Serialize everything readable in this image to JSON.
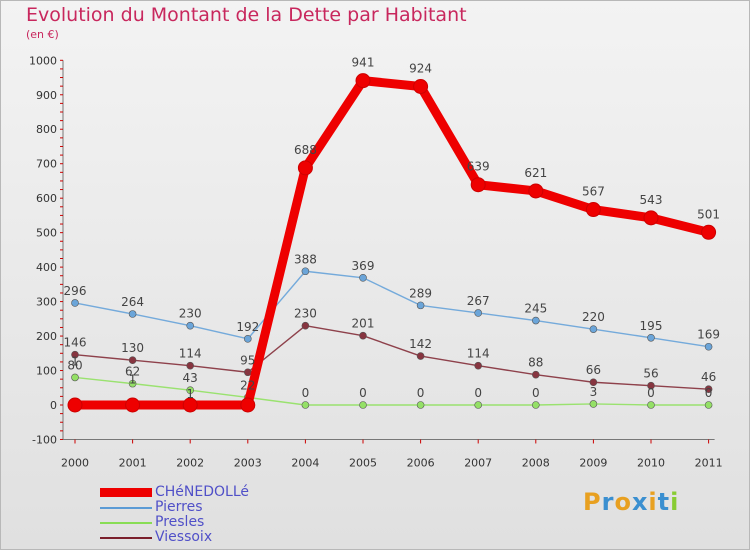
{
  "chart_data": {
    "type": "line",
    "title": "Evolution du Montant de la Dette par Habitant",
    "subtitle": "(en €)",
    "categories": [
      "2000",
      "2001",
      "2002",
      "2003",
      "2004",
      "2005",
      "2006",
      "2007",
      "2008",
      "2009",
      "2010",
      "2011"
    ],
    "ylim": [
      -100,
      1000
    ],
    "yticks": [
      -100,
      0,
      100,
      200,
      300,
      400,
      500,
      600,
      700,
      800,
      900,
      1000
    ],
    "grid": false,
    "legend_position": "bottom-left",
    "series": [
      {
        "name": "CHéNEDOLLé",
        "color": "#ee0000",
        "values": [
          0,
          0,
          0,
          0,
          688,
          941,
          924,
          639,
          621,
          567,
          543,
          501
        ]
      },
      {
        "name": "Pierres",
        "color": "#5b9bd5",
        "values": [
          296,
          264,
          230,
          192,
          388,
          369,
          289,
          267,
          245,
          220,
          195,
          169
        ]
      },
      {
        "name": "Presles",
        "color": "#88dd55",
        "values": [
          80,
          62,
          43,
          22,
          0,
          0,
          0,
          0,
          0,
          3,
          0,
          0
        ]
      },
      {
        "name": "Viessoix",
        "color": "#7a1f2b",
        "values": [
          146,
          130,
          114,
          95,
          230,
          201,
          142,
          114,
          88,
          66,
          56,
          46
        ]
      }
    ],
    "data_labels": [
      [
        "",
        "",
        "",
        "",
        "688",
        "941",
        "924",
        "639",
        "621",
        "567",
        "543",
        "501"
      ],
      [
        "296",
        "264",
        "230",
        "192",
        "388",
        "369",
        "289",
        "267",
        "245",
        "220",
        "195",
        "169"
      ],
      [
        "80",
        "62",
        "43",
        "22",
        "0",
        "0",
        "0",
        "0",
        "0",
        "3",
        "0",
        "0"
      ],
      [
        "146",
        "130",
        "114",
        "95",
        "230",
        "201",
        "142",
        "114",
        "88",
        "66",
        "56",
        "46"
      ]
    ],
    "extra_labels": [
      "1",
      "1",
      "1"
    ]
  },
  "logo": {
    "text": "Proxiti"
  }
}
